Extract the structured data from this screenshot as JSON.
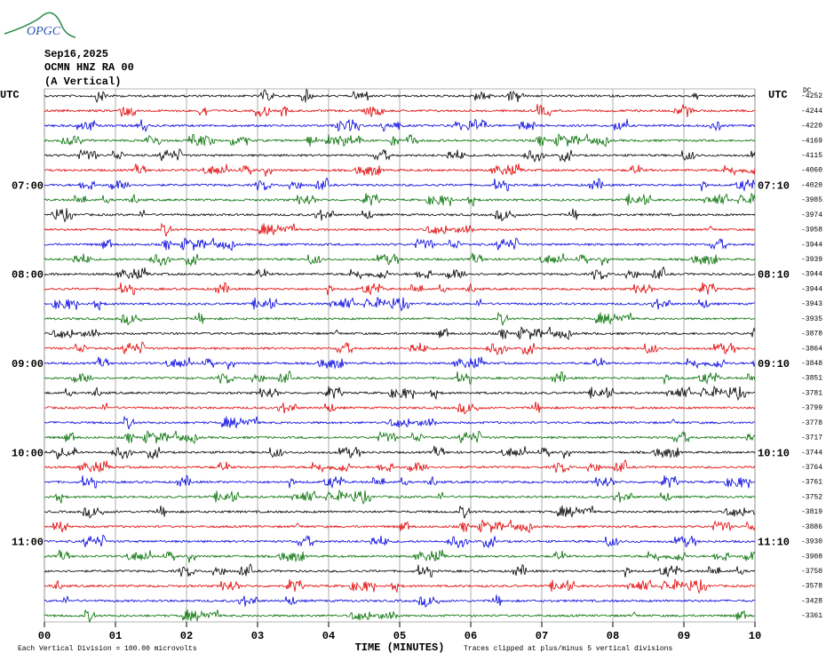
{
  "header": {
    "logo": "OPGC",
    "date": "Sep16,2025",
    "station": "OCMN HNZ RA 00",
    "component": "(A Vertical)",
    "left_zone": "UTC",
    "right_zone": "UTC",
    "dc_header": "DC"
  },
  "trace_colors": [
    "#000000",
    "#e00000",
    "#0000dd",
    "#006e00"
  ],
  "traces": [
    {
      "dc": "-4252"
    },
    {
      "dc": "-4244"
    },
    {
      "dc": "-4220"
    },
    {
      "dc": "-4169"
    },
    {
      "dc": "-4115"
    },
    {
      "dc": "-4060"
    },
    {
      "dc": "-4020",
      "left": "07:00",
      "right": "07:10"
    },
    {
      "dc": "-3985"
    },
    {
      "dc": "-3974"
    },
    {
      "dc": "-3958"
    },
    {
      "dc": "-3944"
    },
    {
      "dc": "-3939"
    },
    {
      "dc": "-3944",
      "left": "08:00",
      "right": "08:10"
    },
    {
      "dc": "-3944"
    },
    {
      "dc": "-3943"
    },
    {
      "dc": "-3935"
    },
    {
      "dc": "-3878"
    },
    {
      "dc": "-3864"
    },
    {
      "dc": "-3848",
      "left": "09:00",
      "right": "09:10"
    },
    {
      "dc": "-3851"
    },
    {
      "dc": "-3781"
    },
    {
      "dc": "-3799"
    },
    {
      "dc": "-3778"
    },
    {
      "dc": "-3717"
    },
    {
      "dc": "-3744",
      "left": "10:00",
      "right": "10:10"
    },
    {
      "dc": "-3764"
    },
    {
      "dc": "-3761"
    },
    {
      "dc": "-3752"
    },
    {
      "dc": "-3819"
    },
    {
      "dc": "-3886"
    },
    {
      "dc": "-3930",
      "left": "11:00",
      "right": "11:10"
    },
    {
      "dc": "-3908"
    },
    {
      "dc": "-3750"
    },
    {
      "dc": "-3578"
    },
    {
      "dc": "-3428"
    },
    {
      "dc": "-3361"
    }
  ],
  "x_axis": {
    "ticks": [
      "00",
      "01",
      "02",
      "03",
      "04",
      "05",
      "06",
      "07",
      "08",
      "09",
      "10"
    ],
    "label": "TIME (MINUTES)"
  },
  "footer": {
    "scale_note": "Each Vertical Division =  100.00 microvolts",
    "clip_note": "Traces clipped at plus/minus 5 vertical divisions"
  }
}
